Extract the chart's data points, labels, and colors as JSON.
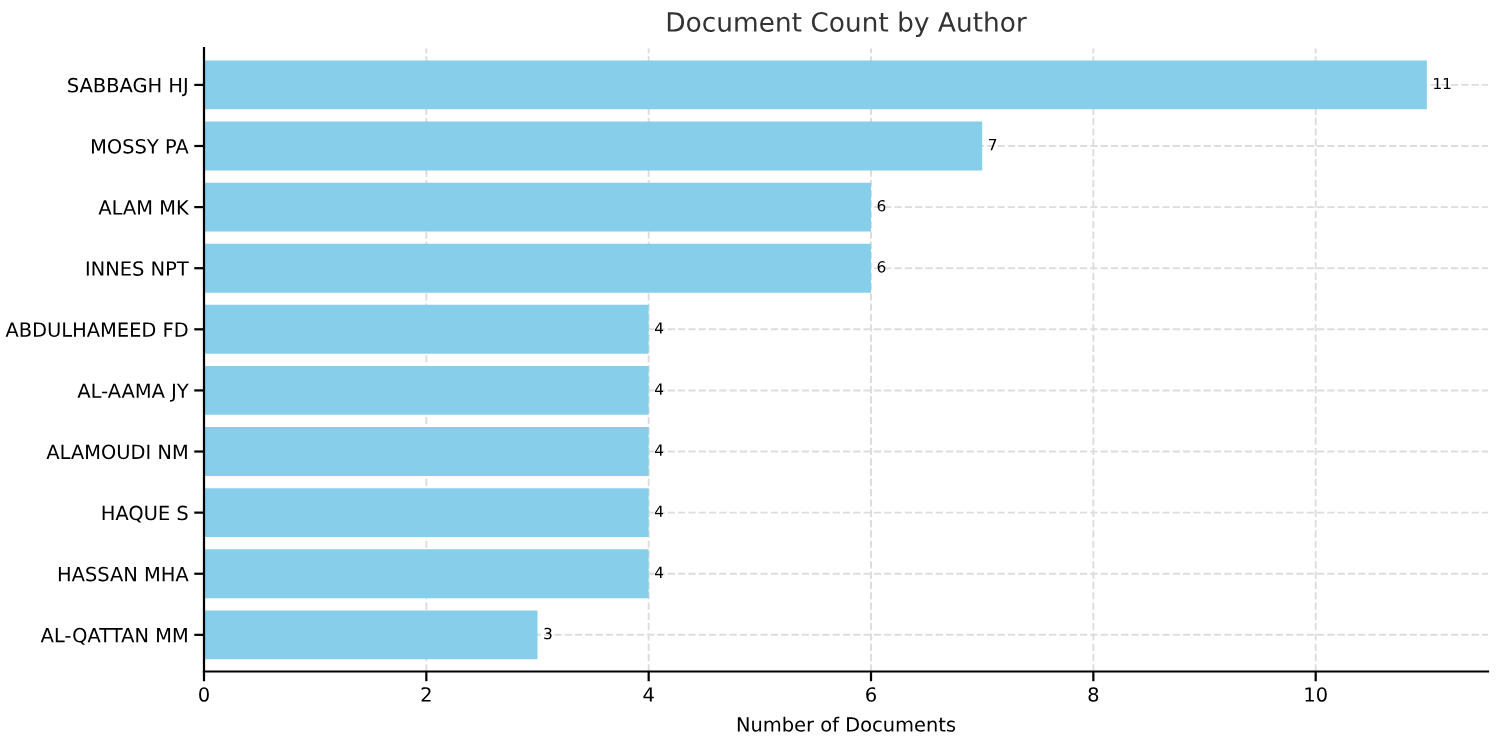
{
  "chart_data": {
    "type": "bar",
    "orientation": "horizontal",
    "title": "Document Count by Author",
    "xlabel": "Number of Documents",
    "categories": [
      "SABBAGH HJ",
      "MOSSY PA",
      "ALAM MK",
      "INNES NPT",
      "ABDULHAMEED FD",
      "AL-AAMA JY",
      "ALAMOUDI NM",
      "HAQUE S",
      "HASSAN MHA",
      "AL-QATTAN MM"
    ],
    "values": [
      11,
      7,
      6,
      6,
      4,
      4,
      4,
      4,
      4,
      3
    ],
    "color": "#87ceeb",
    "xlim": [
      0,
      11.55
    ],
    "xticks": [
      0,
      2,
      4,
      6,
      8,
      10
    ],
    "grid": true,
    "data_labels": true
  }
}
